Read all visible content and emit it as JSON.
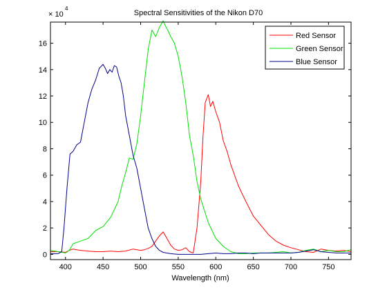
{
  "chart_data": {
    "type": "line",
    "title": "Spectral Sensitivities of the Nikon D70",
    "xlabel": "Wavelength (nm)",
    "ylabel": "",
    "y_multiplier_base": "× 10",
    "y_multiplier_exponent": "4",
    "xlim": [
      380,
      780
    ],
    "ylim": [
      -0.4,
      17.6
    ],
    "x_ticks": [
      400,
      450,
      500,
      550,
      600,
      650,
      700,
      750
    ],
    "y_ticks": [
      0,
      2,
      4,
      6,
      8,
      10,
      12,
      14,
      16
    ],
    "grid": false,
    "legend_position": "top-right",
    "series": [
      {
        "name": "Red Sensor",
        "color": "#ff0000",
        "x": [
          380,
          390,
          400,
          405,
          410,
          415,
          420,
          430,
          440,
          450,
          460,
          470,
          480,
          490,
          500,
          505,
          510,
          515,
          520,
          525,
          530,
          535,
          540,
          545,
          550,
          555,
          560,
          565,
          570,
          575,
          580,
          583,
          586,
          590,
          593,
          596,
          600,
          605,
          610,
          615,
          620,
          630,
          640,
          650,
          660,
          670,
          680,
          690,
          700,
          710,
          720,
          730,
          740,
          750,
          760,
          770,
          780
        ],
        "y": [
          0.2,
          0.2,
          0.15,
          0.3,
          0.4,
          0.35,
          0.3,
          0.25,
          0.2,
          0.2,
          0.25,
          0.2,
          0.25,
          0.4,
          0.3,
          0.35,
          0.45,
          0.6,
          1.0,
          1.4,
          1.7,
          1.2,
          0.7,
          0.4,
          0.3,
          0.35,
          0.5,
          0.2,
          0.1,
          2.0,
          5.5,
          9.0,
          11.5,
          12.1,
          11.2,
          11.6,
          10.8,
          10.0,
          8.6,
          7.8,
          6.8,
          5.2,
          4.0,
          2.9,
          2.2,
          1.5,
          1.0,
          0.7,
          0.5,
          0.35,
          0.2,
          0.15,
          0.4,
          0.3,
          0.25,
          0.3,
          0.2
        ]
      },
      {
        "name": "Green Sensor",
        "color": "#00e000",
        "x": [
          380,
          390,
          400,
          405,
          410,
          420,
          430,
          440,
          450,
          460,
          470,
          475,
          480,
          485,
          490,
          495,
          500,
          505,
          510,
          515,
          520,
          525,
          530,
          533,
          536,
          540,
          545,
          550,
          555,
          560,
          565,
          570,
          575,
          580,
          590,
          600,
          610,
          620,
          630,
          640,
          650,
          660,
          670,
          680,
          690,
          700,
          710,
          720,
          730,
          740,
          750,
          760,
          770,
          780
        ],
        "y": [
          0.3,
          0.2,
          0.1,
          0.3,
          0.8,
          1.0,
          1.2,
          1.8,
          2.1,
          2.8,
          4.0,
          5.2,
          6.2,
          7.3,
          7.2,
          8.4,
          10.5,
          13.0,
          15.5,
          17.0,
          16.5,
          17.2,
          17.7,
          17.3,
          17.0,
          16.5,
          16.0,
          15.0,
          13.5,
          11.5,
          9.0,
          7.5,
          5.5,
          4.2,
          2.4,
          1.2,
          0.6,
          0.2,
          0.05,
          0.05,
          0.1,
          0.1,
          0.1,
          0.15,
          0.2,
          0.1,
          0.15,
          0.3,
          0.4,
          0.2,
          0.3,
          0.2,
          0.2,
          0.35
        ]
      },
      {
        "name": "Blue Sensor",
        "color": "#00008b",
        "x": [
          380,
          390,
          395,
          398,
          402,
          406,
          410,
          415,
          420,
          425,
          430,
          435,
          440,
          445,
          450,
          453,
          456,
          459,
          462,
          465,
          468,
          471,
          474,
          477,
          480,
          485,
          490,
          495,
          500,
          505,
          510,
          515,
          520,
          525,
          530,
          540,
          550,
          560,
          570,
          580,
          590,
          600,
          610,
          620,
          630,
          640,
          650,
          660,
          670,
          680,
          690,
          700,
          710,
          720,
          730,
          740,
          750,
          760,
          770,
          780
        ],
        "y": [
          0.05,
          0.05,
          0.2,
          2.0,
          5.0,
          7.6,
          7.8,
          8.3,
          8.5,
          10.0,
          11.5,
          12.5,
          13.2,
          14.1,
          14.4,
          14.1,
          13.7,
          14.0,
          13.8,
          14.3,
          14.2,
          13.5,
          13.0,
          12.0,
          10.5,
          9.0,
          7.5,
          6.5,
          5.0,
          3.5,
          2.0,
          1.2,
          0.6,
          0.3,
          0.15,
          0.05,
          0.0,
          0.0,
          0.0,
          0.0,
          0.05,
          0.1,
          0.05,
          0.05,
          0.1,
          0.1,
          0.05,
          0.1,
          0.1,
          0.1,
          0.1,
          0.1,
          0.15,
          0.25,
          0.35,
          0.2,
          0.15,
          0.1,
          0.1,
          0.1
        ]
      }
    ]
  }
}
